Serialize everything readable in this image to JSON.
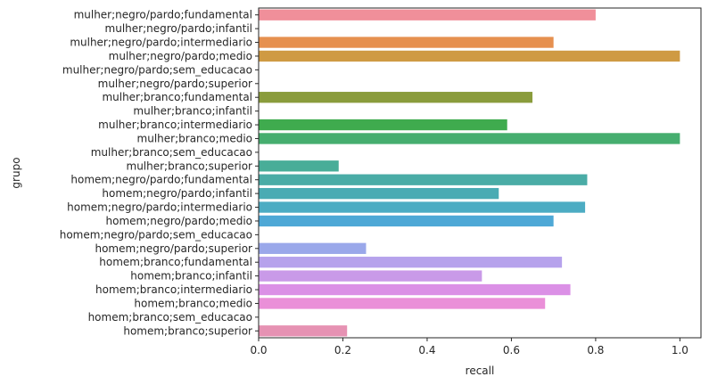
{
  "chart_data": {
    "type": "bar",
    "orientation": "horizontal",
    "xlabel": "recall",
    "ylabel": "grupo",
    "xlim": [
      0,
      1.05
    ],
    "xticks": [
      "0.0",
      "0.2",
      "0.4",
      "0.6",
      "0.8",
      "1.0"
    ],
    "grid": false,
    "categories": [
      "mulher;negro/pardo;fundamental",
      "mulher;negro/pardo;infantil",
      "mulher;negro/pardo;intermediario",
      "mulher;negro/pardo;medio",
      "mulher;negro/pardo;sem_educacao",
      "mulher;negro/pardo;superior",
      "mulher;branco;fundamental",
      "mulher;branco;infantil",
      "mulher;branco;intermediario",
      "mulher;branco;medio",
      "mulher;branco;sem_educacao",
      "mulher;branco;superior",
      "homem;negro/pardo;fundamental",
      "homem;negro/pardo;infantil",
      "homem;negro/pardo;intermediario",
      "homem;negro/pardo;medio",
      "homem;negro/pardo;sem_educacao",
      "homem;negro/pardo;superior",
      "homem;branco;fundamental",
      "homem;branco;infantil",
      "homem;branco;intermediario",
      "homem;branco;medio",
      "homem;branco;sem_educacao",
      "homem;branco;superior"
    ],
    "values": [
      0.8,
      0,
      0.7,
      1.0,
      0,
      0,
      0.65,
      0,
      0.59,
      1.0,
      0,
      0.19,
      0.78,
      0.57,
      0.775,
      0.7,
      0,
      0.255,
      0.72,
      0.53,
      0.74,
      0.68,
      0,
      0.21
    ],
    "colors": [
      "#f08f9a",
      "#f0917a",
      "#e6904f",
      "#cf9a43",
      "#b8a23c",
      "#a3a63c",
      "#8a9c3c",
      "#65a73d",
      "#3fab4e",
      "#46ae6f",
      "#47ae88",
      "#48ad98",
      "#4aaca6",
      "#4aabb3",
      "#4cacc3",
      "#4ea8d6",
      "#7aa8e8",
      "#9aa8ea",
      "#b6a2ec",
      "#c99ae8",
      "#db90e6",
      "#ea8fd8",
      "#ea8fc3",
      "#e692b3"
    ]
  }
}
